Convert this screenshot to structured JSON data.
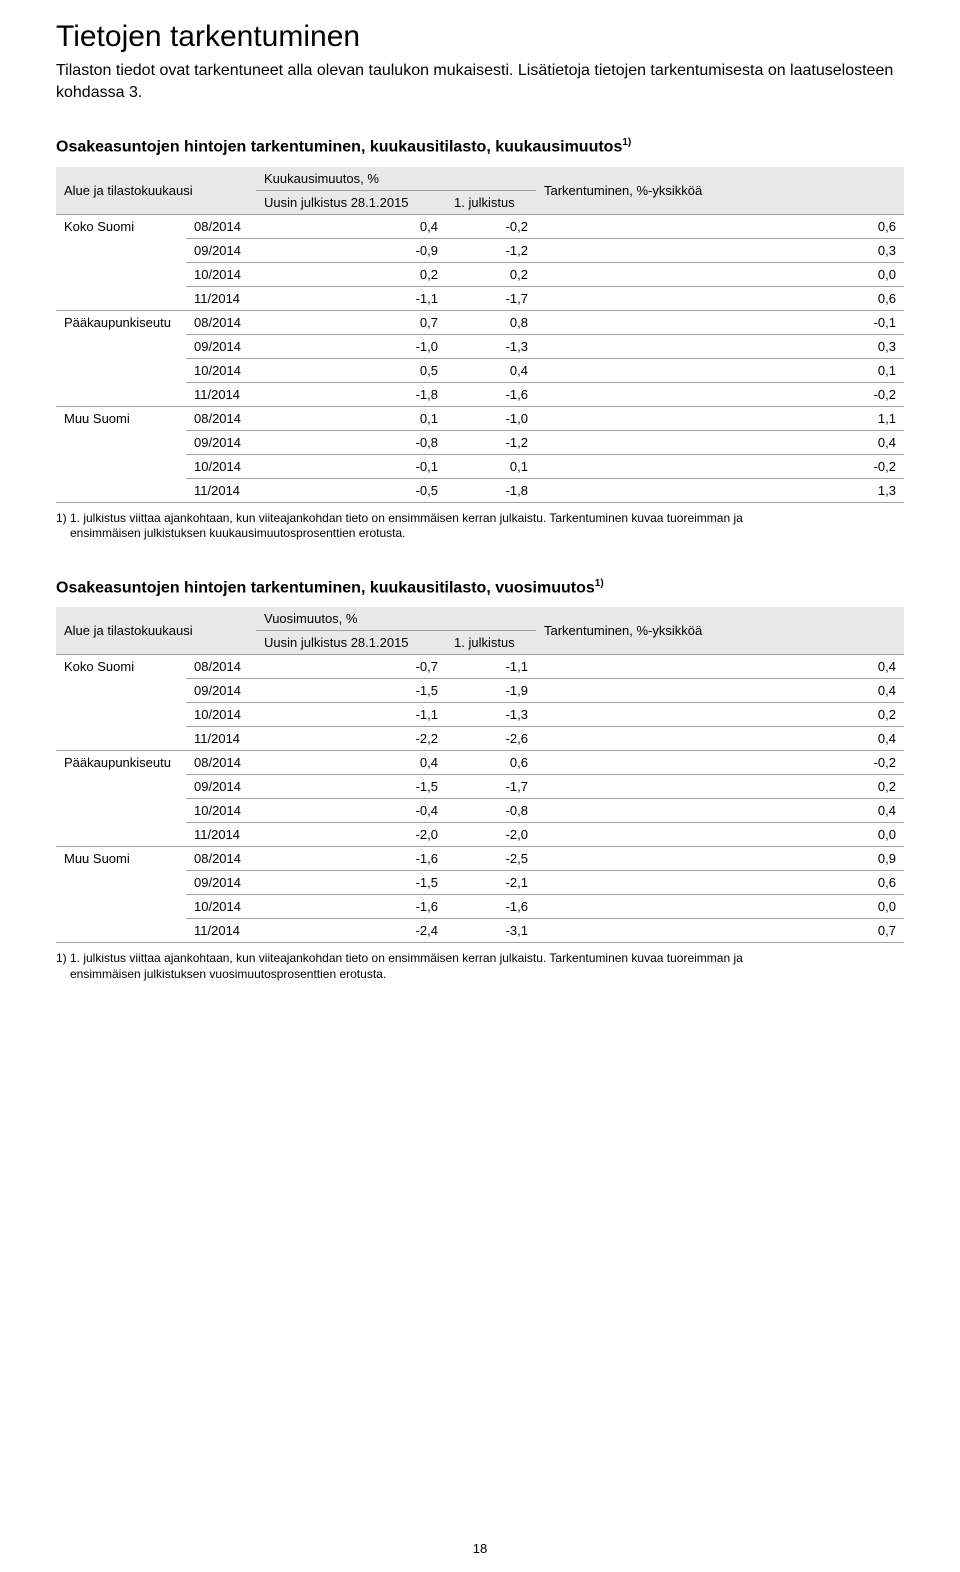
{
  "page": {
    "title": "Tietojen tarkentuminen",
    "intro": "Tilaston tiedot ovat tarkentuneet alla olevan taulukon mukaisesti. Lisätietoja tietojen tarkentumisesta on laatuselosteen kohdassa 3.",
    "page_number": "18"
  },
  "common": {
    "col_region": "Alue ja tilastokuukausi",
    "col_change": "Tarkentuminen, %-yksikköä",
    "col_latest": "Uusin julkistus 28.1.2015",
    "col_first": "1. julkistus"
  },
  "table1": {
    "title_prefix": "Osakeasuntojen hintojen tarkentuminen, kuukausitilasto, kuukausimuutos",
    "sup": "1)",
    "col_mid": "Kuukausimuutos, %",
    "rows": [
      {
        "region": "Koko Suomi",
        "month": "08/2014",
        "a": "0,4",
        "b": "-0,2",
        "c": "0,6"
      },
      {
        "region": "",
        "month": "09/2014",
        "a": "-0,9",
        "b": "-1,2",
        "c": "0,3"
      },
      {
        "region": "",
        "month": "10/2014",
        "a": "0,2",
        "b": "0,2",
        "c": "0,0"
      },
      {
        "region": "",
        "month": "11/2014",
        "a": "-1,1",
        "b": "-1,7",
        "c": "0,6"
      },
      {
        "region": "Pääkaupunkiseutu",
        "month": "08/2014",
        "a": "0,7",
        "b": "0,8",
        "c": "-0,1"
      },
      {
        "region": "",
        "month": "09/2014",
        "a": "-1,0",
        "b": "-1,3",
        "c": "0,3"
      },
      {
        "region": "",
        "month": "10/2014",
        "a": "0,5",
        "b": "0,4",
        "c": "0,1"
      },
      {
        "region": "",
        "month": "11/2014",
        "a": "-1,8",
        "b": "-1,6",
        "c": "-0,2"
      },
      {
        "region": "Muu Suomi",
        "month": "08/2014",
        "a": "0,1",
        "b": "-1,0",
        "c": "1,1"
      },
      {
        "region": "",
        "month": "09/2014",
        "a": "-0,8",
        "b": "-1,2",
        "c": "0,4"
      },
      {
        "region": "",
        "month": "10/2014",
        "a": "-0,1",
        "b": "0,1",
        "c": "-0,2"
      },
      {
        "region": "",
        "month": "11/2014",
        "a": "-0,5",
        "b": "-1,8",
        "c": "1,3"
      }
    ],
    "footnote_line1": "1) 1. julkistus viittaa ajankohtaan, kun viiteajankohdan tieto on ensimmäisen kerran julkaistu. Tarkentuminen kuvaa tuoreimman ja",
    "footnote_line2": "ensimmäisen julkistuksen kuukausimuutosprosenttien erotusta."
  },
  "table2": {
    "title_prefix": "Osakeasuntojen hintojen tarkentuminen, kuukausitilasto, vuosimuutos",
    "sup": "1)",
    "col_mid": "Vuosimuutos, %",
    "rows": [
      {
        "region": "Koko Suomi",
        "month": "08/2014",
        "a": "-0,7",
        "b": "-1,1",
        "c": "0,4"
      },
      {
        "region": "",
        "month": "09/2014",
        "a": "-1,5",
        "b": "-1,9",
        "c": "0,4"
      },
      {
        "region": "",
        "month": "10/2014",
        "a": "-1,1",
        "b": "-1,3",
        "c": "0,2"
      },
      {
        "region": "",
        "month": "11/2014",
        "a": "-2,2",
        "b": "-2,6",
        "c": "0,4"
      },
      {
        "region": "Pääkaupunkiseutu",
        "month": "08/2014",
        "a": "0,4",
        "b": "0,6",
        "c": "-0,2"
      },
      {
        "region": "",
        "month": "09/2014",
        "a": "-1,5",
        "b": "-1,7",
        "c": "0,2"
      },
      {
        "region": "",
        "month": "10/2014",
        "a": "-0,4",
        "b": "-0,8",
        "c": "0,4"
      },
      {
        "region": "",
        "month": "11/2014",
        "a": "-2,0",
        "b": "-2,0",
        "c": "0,0"
      },
      {
        "region": "Muu Suomi",
        "month": "08/2014",
        "a": "-1,6",
        "b": "-2,5",
        "c": "0,9"
      },
      {
        "region": "",
        "month": "09/2014",
        "a": "-1,5",
        "b": "-2,1",
        "c": "0,6"
      },
      {
        "region": "",
        "month": "10/2014",
        "a": "-1,6",
        "b": "-1,6",
        "c": "0,0"
      },
      {
        "region": "",
        "month": "11/2014",
        "a": "-2,4",
        "b": "-3,1",
        "c": "0,7"
      }
    ],
    "footnote_line1": "1) 1. julkistus viittaa ajankohtaan, kun viiteajankohdan tieto on ensimmäisen kerran julkaistu. Tarkentuminen kuvaa tuoreimman ja",
    "footnote_line2": "ensimmäisen julkistuksen vuosimuutosprosenttien erotusta."
  },
  "colors": {
    "header_bg": "#e8e8e8",
    "border": "#a0a0a0",
    "text": "#000000",
    "bg": "#ffffff"
  }
}
